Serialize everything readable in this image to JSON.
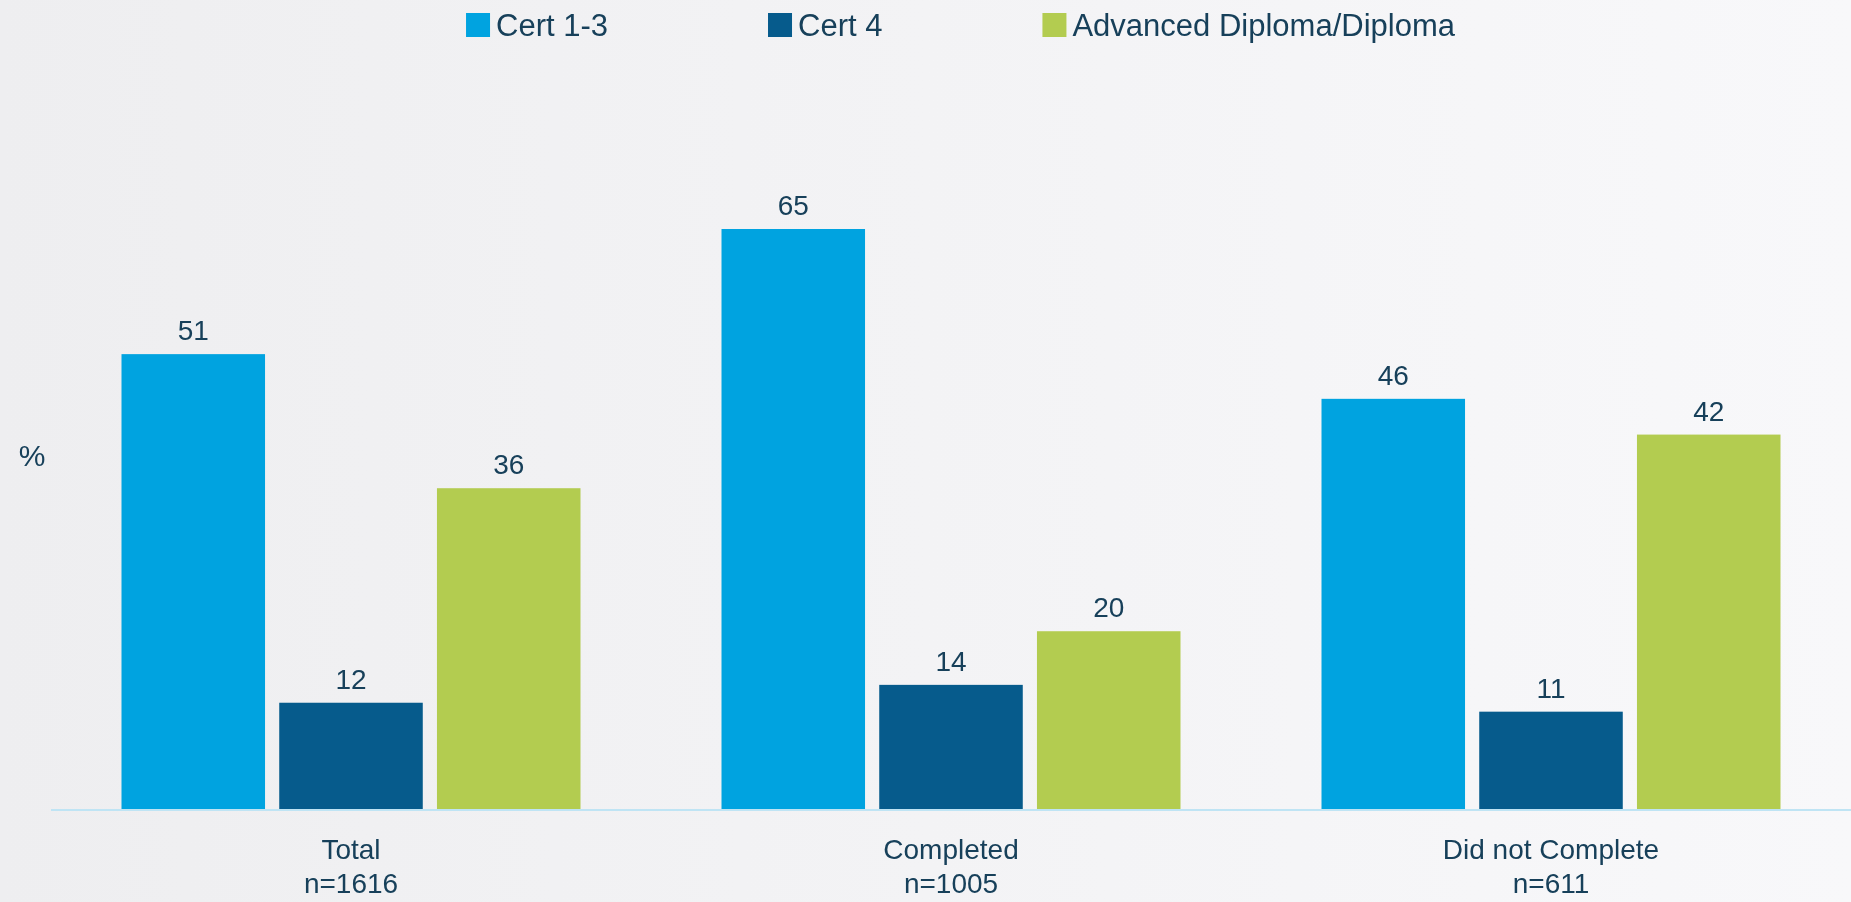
{
  "chart_data": {
    "type": "bar",
    "ylabel": "%",
    "categories": [
      "Total\nn=1616",
      "Completed\nn=1005",
      "Did not Complete\nn=611"
    ],
    "series": [
      {
        "name": "Cert 1-3",
        "color": "#00a3e0",
        "values": [
          51,
          65,
          46
        ]
      },
      {
        "name": "Cert 4",
        "color": "#065b8c",
        "values": [
          12,
          14,
          11
        ]
      },
      {
        "name": "Advanced Diploma/Diploma",
        "color": "#b3cc50",
        "values": [
          36,
          20,
          42
        ]
      }
    ],
    "tick_labels": "x",
    "data_labels": true,
    "legend": "top"
  }
}
